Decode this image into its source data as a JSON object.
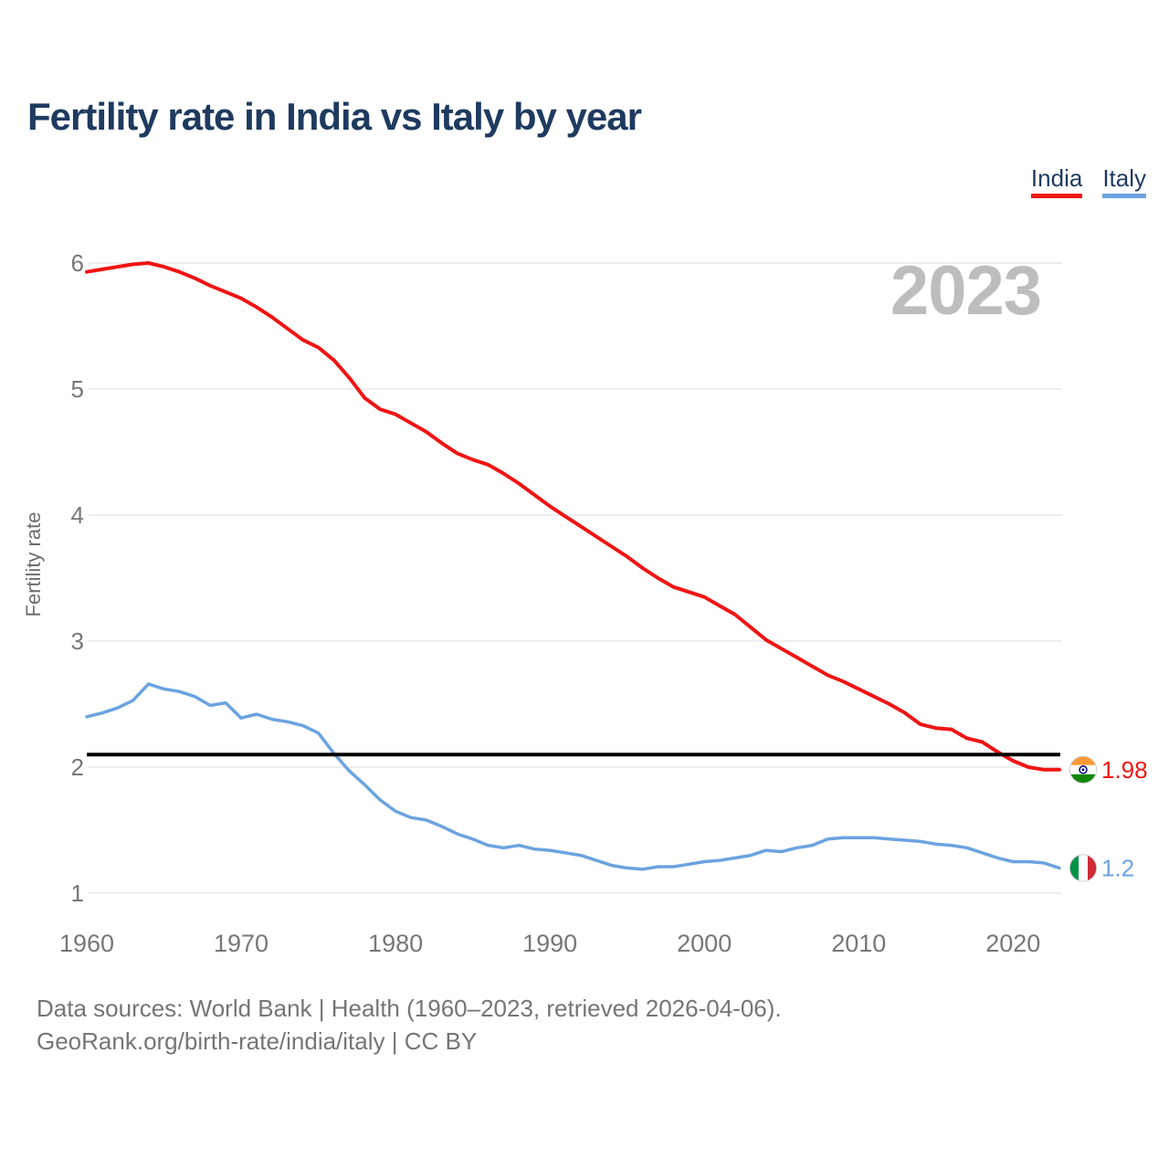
{
  "title": "Fertility rate in India vs Italy by year",
  "watermark": "2023",
  "legend": [
    {
      "label": "India",
      "color": "#f01414"
    },
    {
      "label": "Italy",
      "color": "#6ba3e0"
    }
  ],
  "y_axis": {
    "label": "Fertility rate"
  },
  "end_labels": [
    {
      "series": "India",
      "value": "1.98",
      "flag": "india-flag"
    },
    {
      "series": "Italy",
      "value": "1.2",
      "flag": "italy-flag"
    }
  ],
  "source": {
    "line1": "Data sources: World Bank | Health (1960–2023, retrieved 2026-04-06).",
    "line2": "GeoRank.org/birth-rate/india/italy | CC BY"
  },
  "colors": {
    "title": "#1e3a5f",
    "gridline": "#e9e9e9",
    "tick_text": "#777777",
    "reference_line": "#000000",
    "watermark": "#bdbdbd"
  },
  "chart_data": {
    "type": "line",
    "title": "Fertility rate in India vs Italy by year",
    "xlabel": "",
    "ylabel": "Fertility rate",
    "x_range": [
      1960,
      2023
    ],
    "ylim": [
      1,
      6
    ],
    "y_ticks": [
      1,
      2,
      3,
      4,
      5,
      6
    ],
    "x_ticks": [
      1960,
      1970,
      1980,
      1990,
      2000,
      2010,
      2020
    ],
    "grid": "horizontal",
    "legend_position": "top-right",
    "reference_line": 2.1,
    "years": [
      1960,
      1961,
      1962,
      1963,
      1964,
      1965,
      1966,
      1967,
      1968,
      1969,
      1970,
      1971,
      1972,
      1973,
      1974,
      1975,
      1976,
      1977,
      1978,
      1979,
      1980,
      1981,
      1982,
      1983,
      1984,
      1985,
      1986,
      1987,
      1988,
      1989,
      1990,
      1991,
      1992,
      1993,
      1994,
      1995,
      1996,
      1997,
      1998,
      1999,
      2000,
      2001,
      2002,
      2003,
      2004,
      2005,
      2006,
      2007,
      2008,
      2009,
      2010,
      2011,
      2012,
      2013,
      2014,
      2015,
      2016,
      2017,
      2018,
      2019,
      2020,
      2021,
      2022,
      2023
    ],
    "series": [
      {
        "name": "India",
        "color": "#f01414",
        "values": [
          5.93,
          5.95,
          5.97,
          5.99,
          6.0,
          5.97,
          5.93,
          5.88,
          5.82,
          5.77,
          5.72,
          5.65,
          5.57,
          5.48,
          5.39,
          5.33,
          5.23,
          5.09,
          4.93,
          4.84,
          4.8,
          4.73,
          4.66,
          4.57,
          4.49,
          4.44,
          4.4,
          4.33,
          4.25,
          4.16,
          4.07,
          3.99,
          3.91,
          3.83,
          3.75,
          3.67,
          3.58,
          3.5,
          3.43,
          3.39,
          3.35,
          3.28,
          3.21,
          3.11,
          3.01,
          2.94,
          2.87,
          2.8,
          2.73,
          2.68,
          2.62,
          2.56,
          2.5,
          2.43,
          2.34,
          2.31,
          2.3,
          2.23,
          2.2,
          2.12,
          2.05,
          2.0,
          1.98,
          1.98
        ]
      },
      {
        "name": "Italy",
        "color": "#6ba3e0",
        "values": [
          2.4,
          2.43,
          2.47,
          2.53,
          2.66,
          2.62,
          2.6,
          2.56,
          2.49,
          2.51,
          2.39,
          2.42,
          2.38,
          2.36,
          2.33,
          2.27,
          2.11,
          1.97,
          1.86,
          1.74,
          1.65,
          1.6,
          1.58,
          1.53,
          1.47,
          1.43,
          1.38,
          1.36,
          1.38,
          1.35,
          1.34,
          1.32,
          1.3,
          1.26,
          1.22,
          1.2,
          1.19,
          1.21,
          1.21,
          1.23,
          1.25,
          1.26,
          1.28,
          1.3,
          1.34,
          1.33,
          1.36,
          1.38,
          1.43,
          1.44,
          1.44,
          1.44,
          1.43,
          1.42,
          1.41,
          1.39,
          1.38,
          1.36,
          1.32,
          1.28,
          1.25,
          1.25,
          1.24,
          1.2
        ]
      }
    ]
  }
}
